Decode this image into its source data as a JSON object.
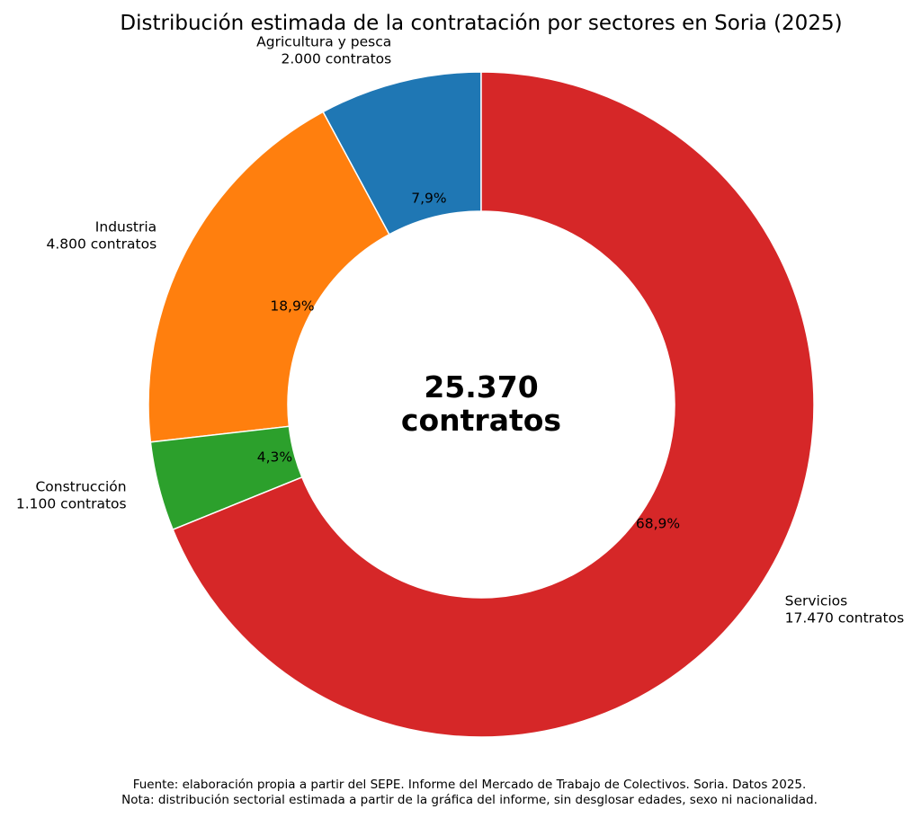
{
  "chart_data": {
    "type": "pie",
    "variant": "donut",
    "title": "Distribución estimada de la contratación por sectores en Soria (2025)",
    "center_label": {
      "value": "25.370",
      "unit": "contratos"
    },
    "slices": [
      {
        "category": "Agricultura y pesca",
        "value": 2000,
        "value_label": "2.000 contratos",
        "percent_label": "7,9%",
        "color": "#1f77b4"
      },
      {
        "category": "Industria",
        "value": 4800,
        "value_label": "4.800 contratos",
        "percent_label": "18,9%",
        "color": "#ff7f0e"
      },
      {
        "category": "Construcción",
        "value": 1100,
        "value_label": "1.100 contratos",
        "percent_label": "4,3%",
        "color": "#2ca02c"
      },
      {
        "category": "Servicios",
        "value": 17470,
        "value_label": "17.470 contratos",
        "percent_label": "68,9%",
        "color": "#d62728"
      }
    ],
    "start_angle_deg": 90,
    "direction": "counterclockwise",
    "footnotes": [
      "Fuente: elaboración propia a partir del SEPE. Informe del Mercado de Trabajo de Colectivos. Soria. Datos 2025.",
      "Nota: distribución sectorial estimada a partir de la gráfica del informe, sin desglosar edades, sexo ni nacionalidad."
    ]
  }
}
